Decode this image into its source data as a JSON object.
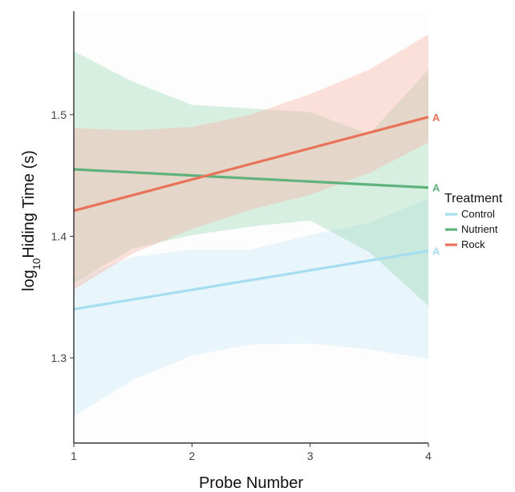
{
  "chart_data": {
    "type": "line",
    "xlabel": "Probe Number",
    "ylabel": {
      "prefix": "log",
      "subscript": "10",
      "suffix": "Hiding Time (s)"
    },
    "xlim": [
      1,
      4
    ],
    "ylim": [
      1.23,
      1.585
    ],
    "x_ticks": [
      1,
      2,
      3,
      4
    ],
    "y_ticks": [
      1.3,
      1.4,
      1.5
    ],
    "x_tick_labels": [
      "1",
      "2",
      "3",
      "4"
    ],
    "y_tick_labels": [
      "1.3",
      "1.4",
      "1.5"
    ],
    "grid": false,
    "legend": {
      "title": "Treatment",
      "position": "right"
    },
    "series": [
      {
        "name": "Control",
        "color": "#a6ddf1",
        "band_color": "#d4eefa",
        "band_opacity": 0.5,
        "x": [
          1,
          4
        ],
        "y": [
          1.34,
          1.388
        ],
        "band_x": [
          1,
          1.5,
          2,
          2.5,
          3,
          3.5,
          4
        ],
        "band_lower": [
          1.252,
          1.282,
          1.302,
          1.311,
          1.312,
          1.307,
          1.299
        ],
        "band_upper": [
          1.365,
          1.383,
          1.389,
          1.389,
          1.401,
          1.411,
          1.431
        ],
        "letter": "A"
      },
      {
        "name": "Nutrient",
        "color": "#5fb27b",
        "band_color": "#8fd3ad",
        "band_opacity": 0.35,
        "x": [
          1,
          4
        ],
        "y": [
          1.455,
          1.44
        ],
        "band_x": [
          1,
          1.5,
          2,
          2.5,
          3,
          3.5,
          4
        ],
        "band_lower": [
          1.362,
          1.39,
          1.401,
          1.408,
          1.413,
          1.387,
          1.343
        ],
        "band_upper": [
          1.552,
          1.527,
          1.508,
          1.505,
          1.502,
          1.484,
          1.537
        ],
        "letter": "A"
      },
      {
        "name": "Rock",
        "color": "#e8735a",
        "band_color": "#f7b4a4",
        "band_opacity": 0.4,
        "x": [
          1,
          4
        ],
        "y": [
          1.421,
          1.498
        ],
        "band_x": [
          1,
          1.5,
          2,
          2.5,
          3,
          3.5,
          4
        ],
        "band_lower": [
          1.356,
          1.386,
          1.406,
          1.422,
          1.434,
          1.452,
          1.477
        ],
        "band_upper": [
          1.489,
          1.487,
          1.49,
          1.5,
          1.517,
          1.537,
          1.566
        ],
        "letter": "A"
      }
    ]
  }
}
